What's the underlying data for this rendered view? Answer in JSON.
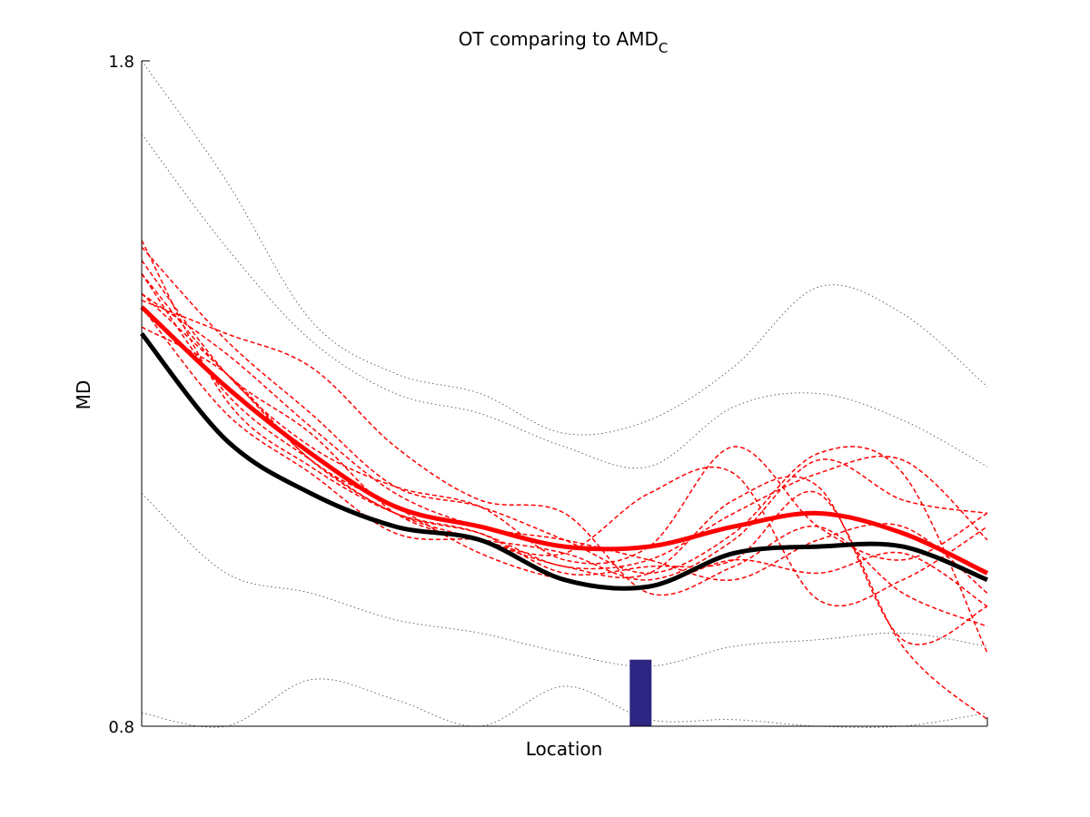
{
  "chart_data": {
    "type": "line",
    "title": "OT comparing to AMD",
    "title_subscript": "C",
    "xlabel": "Location",
    "ylabel": "MD",
    "ylim": [
      0.8,
      1.8
    ],
    "yticks": [
      "1.8",
      "0.8"
    ],
    "grid": false,
    "legend": "none",
    "x": [
      0,
      0.1,
      0.2,
      0.3,
      0.4,
      0.5,
      0.6,
      0.7,
      0.8,
      0.9,
      1.0
    ],
    "mean_series": [
      {
        "color": "#ff0000",
        "values": [
          1.43,
          1.31,
          1.21,
          1.13,
          1.1,
          1.07,
          1.07,
          1.1,
          1.12,
          1.09,
          1.03
        ]
      },
      {
        "color": "#000000",
        "values": [
          1.39,
          1.23,
          1.15,
          1.1,
          1.08,
          1.02,
          1.01,
          1.06,
          1.07,
          1.07,
          1.02
        ]
      }
    ],
    "subject_series": [
      {
        "color": "#ff0000",
        "style": "dashed",
        "values": [
          1.45,
          1.36,
          1.25,
          1.15,
          1.1,
          1.08,
          1.05,
          1.02,
          1.08,
          1.1,
          1.0
        ]
      },
      {
        "color": "#ff0000",
        "style": "dashed",
        "values": [
          1.48,
          1.3,
          1.2,
          1.12,
          1.09,
          1.04,
          1.05,
          1.12,
          1.18,
          1.2,
          1.08
        ]
      },
      {
        "color": "#ff0000",
        "style": "dashed",
        "values": [
          1.5,
          1.33,
          1.22,
          1.16,
          1.13,
          1.05,
          1.07,
          1.22,
          1.1,
          1.05,
          1.12
        ]
      },
      {
        "color": "#ff0000",
        "style": "dashed",
        "values": [
          1.44,
          1.39,
          1.34,
          1.22,
          1.14,
          1.12,
          1.0,
          1.04,
          1.1,
          1.0,
          0.95
        ]
      },
      {
        "color": "#ff0000",
        "style": "dashed",
        "values": [
          1.48,
          1.33,
          1.24,
          1.12,
          1.08,
          1.06,
          1.15,
          1.18,
          0.99,
          1.02,
          1.1
        ]
      },
      {
        "color": "#ff0000",
        "style": "dashed",
        "values": [
          1.43,
          1.27,
          1.18,
          1.09,
          1.08,
          1.06,
          1.02,
          1.08,
          1.2,
          1.14,
          1.12
        ]
      },
      {
        "color": "#ff0000",
        "style": "dashed",
        "values": [
          1.4,
          1.33,
          1.2,
          1.13,
          1.06,
          1.02,
          1.01,
          1.05,
          1.03,
          1.06,
          0.98
        ]
      },
      {
        "color": "#ff0000",
        "style": "dashed",
        "values": [
          1.53,
          1.29,
          1.19,
          1.12,
          1.09,
          1.03,
          1.04,
          1.05,
          1.15,
          0.92,
          0.81
        ]
      },
      {
        "color": "#ff0000",
        "style": "dashed",
        "values": [
          1.52,
          1.38,
          1.27,
          1.16,
          1.13,
          1.08,
          1.03,
          1.09,
          1.21,
          1.18,
          0.91
        ]
      },
      {
        "color": "#ff0000",
        "style": "dashed",
        "values": [
          1.45,
          1.33,
          1.2,
          1.12,
          1.08,
          1.04,
          1.03,
          1.14,
          1.16,
          0.93,
          0.98
        ]
      }
    ],
    "reference_series": [
      {
        "color": "#555555",
        "style": "dotted",
        "values": [
          1.8,
          1.62,
          1.41,
          1.33,
          1.3,
          1.24,
          1.26,
          1.34,
          1.46,
          1.42,
          1.31
        ]
      },
      {
        "color": "#555555",
        "style": "dotted",
        "values": [
          1.69,
          1.52,
          1.38,
          1.3,
          1.27,
          1.22,
          1.19,
          1.28,
          1.3,
          1.26,
          1.19
        ]
      },
      {
        "color": "#555555",
        "style": "dotted",
        "values": [
          1.15,
          1.03,
          1.0,
          0.96,
          0.94,
          0.91,
          0.89,
          0.92,
          0.93,
          0.94,
          0.92
        ]
      },
      {
        "color": "#555555",
        "style": "dotted",
        "values": [
          0.82,
          0.8,
          0.87,
          0.84,
          0.8,
          0.86,
          0.81,
          0.81,
          0.8,
          0.8,
          0.82
        ]
      }
    ],
    "markers": [
      {
        "type": "bar",
        "x": 0.59,
        "height": 0.1,
        "color": "#2e2683"
      }
    ]
  }
}
